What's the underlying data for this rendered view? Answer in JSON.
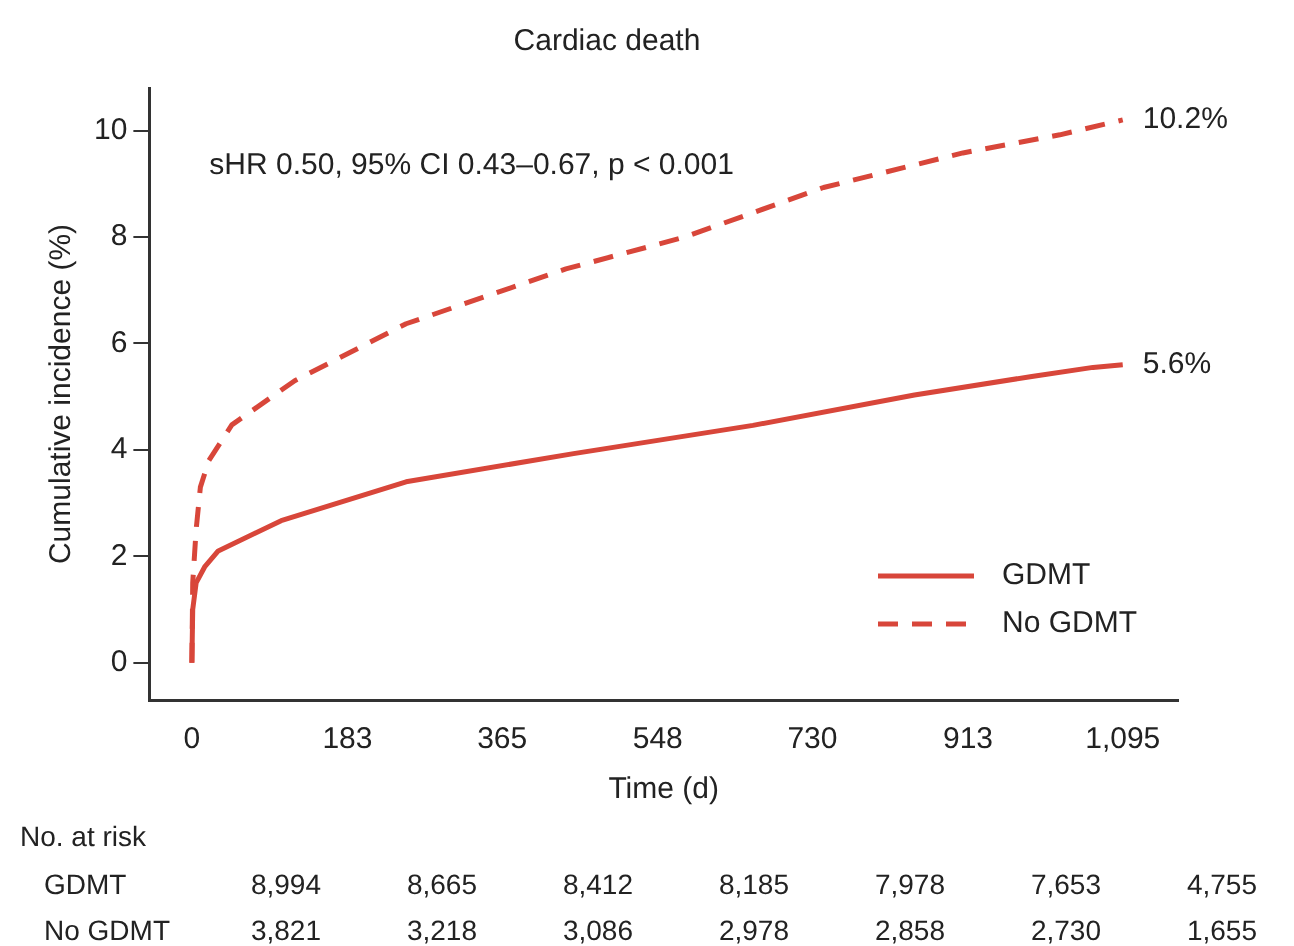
{
  "chart_data": {
    "type": "line",
    "title": "Cardiac death",
    "xlabel": "Time (d)",
    "ylabel": "Cumulative incidence (%)",
    "xlim": [
      -50,
      1160
    ],
    "xticks": [
      0,
      183,
      365,
      548,
      730,
      913,
      {
        "value": 1095,
        "label": "1,095"
      }
    ],
    "ylim": [
      -0.7,
      10.8
    ],
    "yticks": [
      0,
      2,
      4,
      6,
      8,
      10
    ],
    "grid": false,
    "legend": "bottom right",
    "marker": "none",
    "series": [
      {
        "name": "GDMT",
        "color": "#d8463a",
        "line_style": "solid",
        "x": [
          0,
          1,
          5,
          15,
          31,
          105,
          252,
          449,
          660,
          850,
          988,
          1060,
          1095
        ],
        "values": [
          0,
          1.0,
          1.5,
          1.8,
          2.1,
          2.67,
          3.4,
          3.93,
          4.46,
          5.03,
          5.38,
          5.55,
          5.6
        ]
      },
      {
        "name": "No GDMT",
        "color": "#d8463a",
        "line_style": "dashed",
        "x": [
          0,
          1,
          5,
          10,
          20,
          47,
          121,
          252,
          440,
          580,
          743,
          907,
          1021,
          1095
        ],
        "values": [
          0,
          1.5,
          2.5,
          3.3,
          3.8,
          4.47,
          5.3,
          6.37,
          7.4,
          8.0,
          8.93,
          9.58,
          9.92,
          10.2
        ]
      }
    ],
    "annotations": [
      "sHR 0.50, 95% CI 0.43–0.67, p < 0.001",
      {
        "text": "10.2%",
        "x": 1095,
        "y": 10.2
      },
      {
        "text": "5.6%",
        "x": 1095,
        "y": 5.6
      },
      "No. at risk",
      "GDMT",
      "8,994",
      "8,665",
      "8,412",
      "8,185",
      "7,978",
      "7,653",
      "4,755",
      "No GDMT",
      "3,821",
      "3,218",
      "3,086",
      "2,978",
      "2,858",
      "2,730",
      "1,655"
    ]
  }
}
